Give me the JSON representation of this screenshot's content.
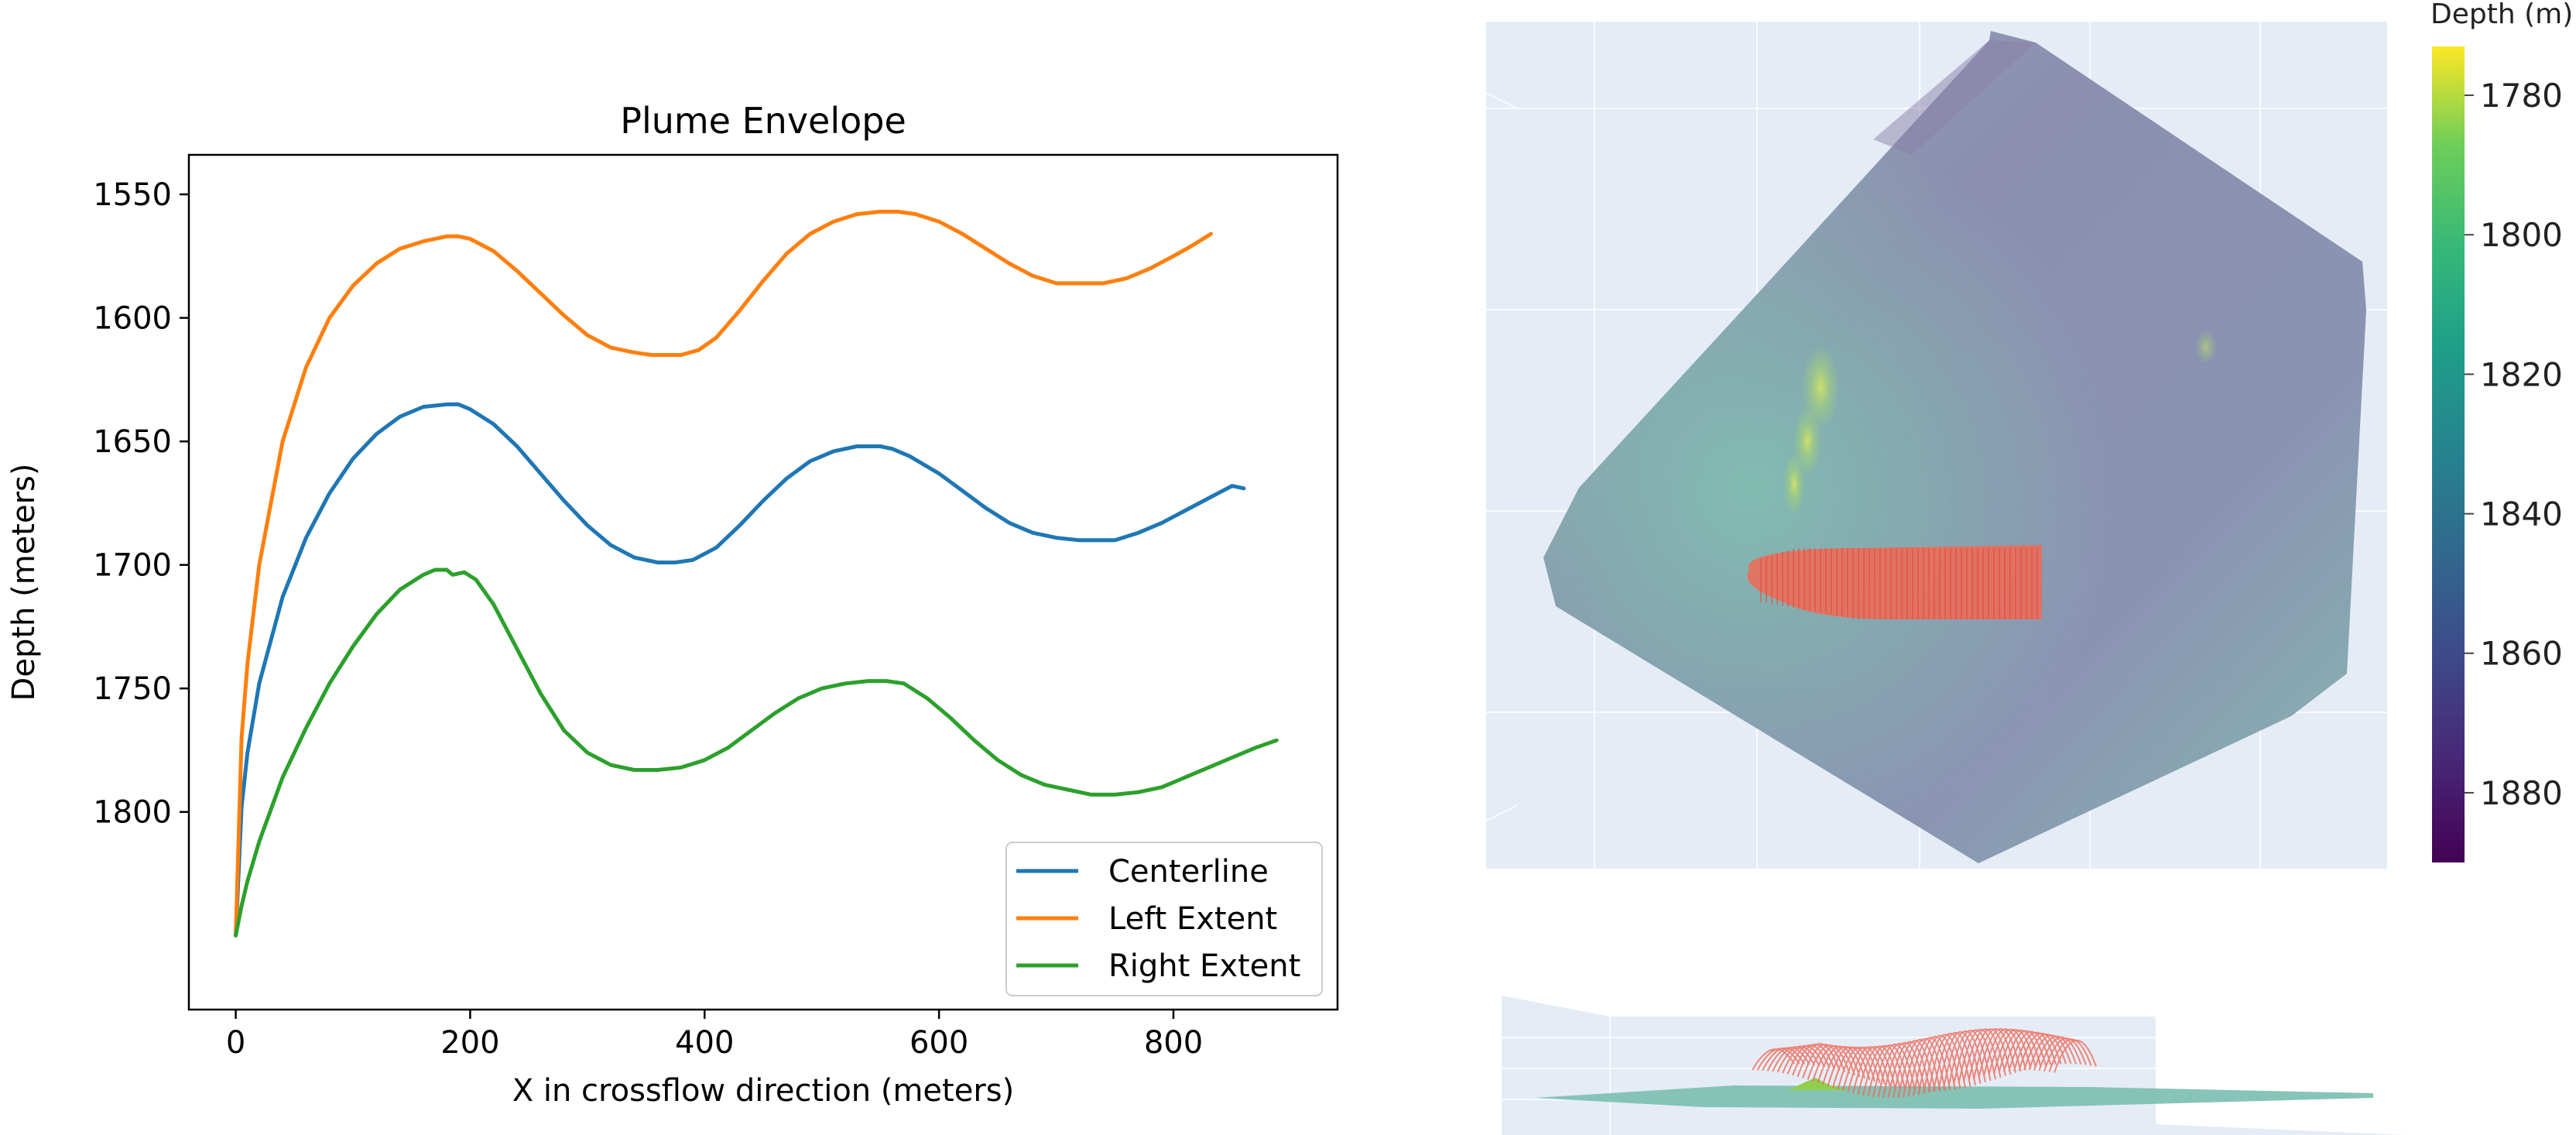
{
  "chart_data": [
    {
      "type": "line",
      "title": "Plume Envelope",
      "xlabel": "X in crossflow direction (meters)",
      "ylabel": "Depth (meters)",
      "xlim": [
        -40,
        940
      ],
      "ylim": [
        1880,
        1534
      ],
      "y_inverted": true,
      "grid": false,
      "legend_position": "lower-right",
      "xticks": [
        0,
        200,
        400,
        600,
        800
      ],
      "yticks": [
        1550,
        1600,
        1650,
        1700,
        1750,
        1800
      ],
      "series": [
        {
          "name": "Centerline",
          "color": "#1f77b4",
          "x": [
            0,
            5,
            10,
            20,
            40,
            60,
            80,
            100,
            120,
            140,
            160,
            180,
            190,
            200,
            220,
            240,
            260,
            280,
            300,
            320,
            340,
            360,
            375,
            390,
            410,
            430,
            450,
            470,
            490,
            510,
            530,
            550,
            560,
            575,
            600,
            620,
            640,
            660,
            680,
            700,
            720,
            740,
            750,
            770,
            790,
            810,
            830,
            850,
            860
          ],
          "y": [
            1850,
            1798,
            1776,
            1748,
            1713,
            1689,
            1671,
            1657,
            1647,
            1640,
            1636,
            1635,
            1635,
            1637,
            1643,
            1652,
            1663,
            1674,
            1684,
            1692,
            1697,
            1699,
            1699,
            1698,
            1693,
            1684,
            1674,
            1665,
            1658,
            1654,
            1652,
            1652,
            1653,
            1656,
            1663,
            1670,
            1677,
            1683,
            1687,
            1689,
            1690,
            1690,
            1690,
            1687,
            1683,
            1678,
            1673,
            1668,
            1669
          ]
        },
        {
          "name": "Left Extent",
          "color": "#ff7f0e",
          "x": [
            0,
            5,
            10,
            20,
            40,
            60,
            80,
            100,
            120,
            140,
            160,
            180,
            190,
            200,
            220,
            240,
            260,
            280,
            300,
            320,
            340,
            355,
            365,
            380,
            395,
            410,
            430,
            450,
            470,
            490,
            510,
            530,
            550,
            565,
            580,
            600,
            620,
            640,
            660,
            680,
            700,
            720,
            740,
            760,
            780,
            800,
            815,
            832
          ],
          "y": [
            1850,
            1770,
            1740,
            1700,
            1650,
            1620,
            1600,
            1587,
            1578,
            1572,
            1569,
            1567,
            1567,
            1568,
            1573,
            1581,
            1590,
            1599,
            1607,
            1612,
            1614,
            1615,
            1615,
            1615,
            1613,
            1608,
            1597,
            1585,
            1574,
            1566,
            1561,
            1558,
            1557,
            1557,
            1558,
            1561,
            1566,
            1572,
            1578,
            1583,
            1586,
            1586,
            1586,
            1584,
            1580,
            1575,
            1571,
            1566
          ]
        },
        {
          "name": "Right Extent",
          "color": "#2ca02c",
          "x": [
            0,
            5,
            10,
            20,
            40,
            60,
            80,
            100,
            120,
            140,
            160,
            170,
            180,
            185,
            195,
            205,
            220,
            240,
            260,
            280,
            300,
            320,
            340,
            360,
            380,
            400,
            420,
            440,
            460,
            480,
            500,
            520,
            540,
            555,
            570,
            590,
            610,
            630,
            650,
            670,
            690,
            710,
            730,
            750,
            770,
            790,
            810,
            830,
            850,
            870,
            888
          ],
          "y": [
            1850,
            1838,
            1828,
            1812,
            1786,
            1766,
            1748,
            1733,
            1720,
            1710,
            1704,
            1702,
            1702,
            1704,
            1703,
            1706,
            1716,
            1734,
            1752,
            1767,
            1776,
            1781,
            1783,
            1783,
            1782,
            1779,
            1774,
            1767,
            1760,
            1754,
            1750,
            1748,
            1747,
            1747,
            1748,
            1754,
            1762,
            1771,
            1779,
            1785,
            1789,
            1791,
            1793,
            1793,
            1792,
            1790,
            1786,
            1782,
            1778,
            1774,
            1771
          ]
        }
      ]
    },
    {
      "type": "surface",
      "colorbar_title": "Depth (m)",
      "colorbar_ticks": [
        1780,
        1800,
        1820,
        1840,
        1860,
        1880
      ],
      "colorbar_range": [
        1890,
        1773
      ],
      "colormap": "viridis",
      "plume_color": "#ff5533"
    }
  ]
}
